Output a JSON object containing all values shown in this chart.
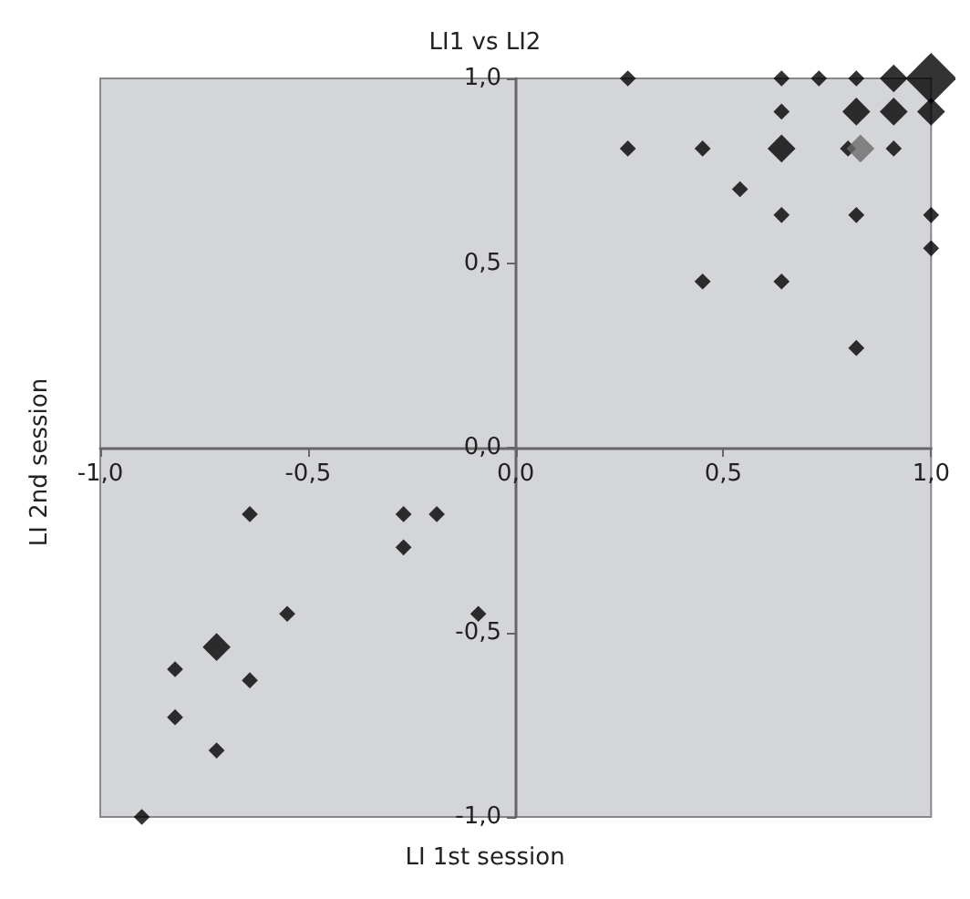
{
  "chart_data": {
    "type": "bubble",
    "title": "LI1 vs LI2",
    "xlabel": "LI 1st session",
    "ylabel": "LI 2nd session",
    "x": [
      0.27,
      0.27,
      0.45,
      0.45,
      0.54,
      0.64,
      0.64,
      0.64,
      0.64,
      0.64,
      0.73,
      0.82,
      0.82,
      0.8,
      0.83,
      0.82,
      0.82,
      0.91,
      0.91,
      0.91,
      1.0,
      1.0,
      1.0,
      1.0,
      -0.9,
      -0.82,
      -0.82,
      -0.72,
      -0.72,
      -0.64,
      -0.64,
      -0.55,
      -0.27,
      -0.27,
      -0.19,
      -0.09
    ],
    "values": [
      1.0,
      0.81,
      0.81,
      0.45,
      0.7,
      1.0,
      0.91,
      0.81,
      0.63,
      0.45,
      1.0,
      1.0,
      0.91,
      0.81,
      0.81,
      0.63,
      0.27,
      1.0,
      0.91,
      0.81,
      1.0,
      0.91,
      0.63,
      0.54,
      -1.0,
      -0.6,
      -0.73,
      -0.54,
      -0.82,
      -0.18,
      -0.63,
      -0.45,
      -0.18,
      -0.27,
      -0.18,
      -0.45
    ],
    "sizes": [
      0.1,
      0.1,
      0.1,
      0.1,
      0.1,
      0.1,
      0.1,
      0.3,
      0.1,
      0.1,
      0.1,
      0.1,
      0.3,
      0.1,
      0.3,
      0.1,
      0.1,
      0.3,
      0.3,
      0.1,
      1,
      0.3,
      0.1,
      0.1,
      0.1,
      0.1,
      0.1,
      0.3,
      0.1,
      0.1,
      0.1,
      0.1,
      0.1,
      0.1,
      0.1,
      0.1
    ],
    "colors": [
      "#000000",
      "#000000",
      "#000000",
      "#000000",
      "#000000",
      "#000000",
      "#000000",
      "#000000",
      "#000000",
      "#000000",
      "#000000",
      "#000000",
      "#000000",
      "#000000",
      "#6b6b6b",
      "#000000",
      "#000000",
      "#000000",
      "#000000",
      "#000000",
      "#000000",
      "#000000",
      "#000000",
      "#000000",
      "#000000",
      "#000000",
      "#000000",
      "#000000",
      "#000000",
      "#000000",
      "#000000",
      "#000000",
      "#000000",
      "#000000",
      "#000000",
      "#000000"
    ],
    "marker": "diamond",
    "grid": false,
    "xlim": [
      -1,
      1
    ],
    "xticks": [
      {
        "value": -1,
        "label": "-1,0"
      },
      {
        "value": -0.5,
        "label": "-0,5"
      },
      {
        "value": 0,
        "label": "0,0"
      },
      {
        "value": 0.5,
        "label": "0,5"
      },
      {
        "value": 1,
        "label": "1,0"
      }
    ],
    "ylim": [
      -1,
      1
    ],
    "yticks": [
      {
        "value": -1,
        "label": "-1,0"
      },
      {
        "value": -0.5,
        "label": "-0,5"
      },
      {
        "value": 0,
        "label": "0,0"
      },
      {
        "value": 0.5,
        "label": "0,5"
      },
      {
        "value": 1,
        "label": "1,0"
      }
    ]
  }
}
